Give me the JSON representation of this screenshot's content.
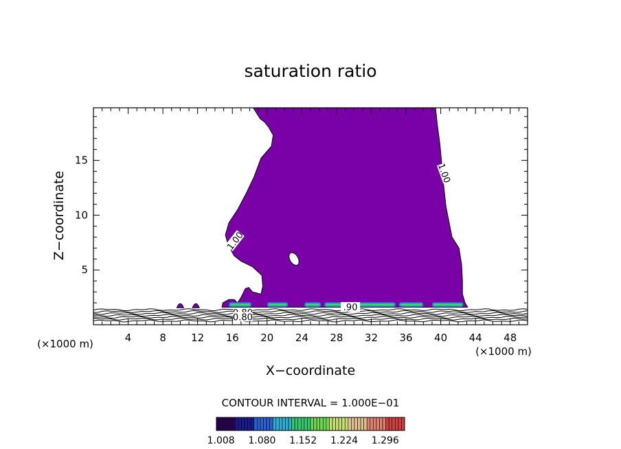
{
  "chart_data": {
    "type": "contour",
    "title": "saturation ratio",
    "xlabel": "X−coordinate",
    "ylabel": "Z−coordinate",
    "x_unit_left": "(×1000 m)",
    "x_unit_right": "(×1000 m)",
    "xlim": [
      0,
      50
    ],
    "ylim": [
      0,
      19.8
    ],
    "x_ticks": [
      4,
      8,
      12,
      16,
      20,
      24,
      28,
      32,
      36,
      40,
      44,
      48
    ],
    "y_ticks": [
      5,
      10,
      15
    ],
    "contour_labels": [
      {
        "text": "1.00",
        "x": 16.4,
        "y": 7.6,
        "angle": -52
      },
      {
        "text": "1.00",
        "x": 40.3,
        "y": 13.8,
        "angle": 70
      },
      {
        "text": "0.80",
        "x": 17.2,
        "y": 1.0,
        "angle": 0
      },
      {
        "text": "0.80",
        "x": 17.2,
        "y": 0.6,
        "angle": 0
      },
      {
        "text": ".90",
        "x": 29.6,
        "y": 1.5,
        "angle": 0
      }
    ],
    "fill_color": "#7a00a8",
    "contour_interval_text": "CONTOUR INTERVAL = 1.000E−01",
    "colorbar": {
      "ticks": [
        "1.008",
        "1.080",
        "1.152",
        "1.224",
        "1.296"
      ],
      "min": 1.0,
      "max": 1.33
    }
  }
}
